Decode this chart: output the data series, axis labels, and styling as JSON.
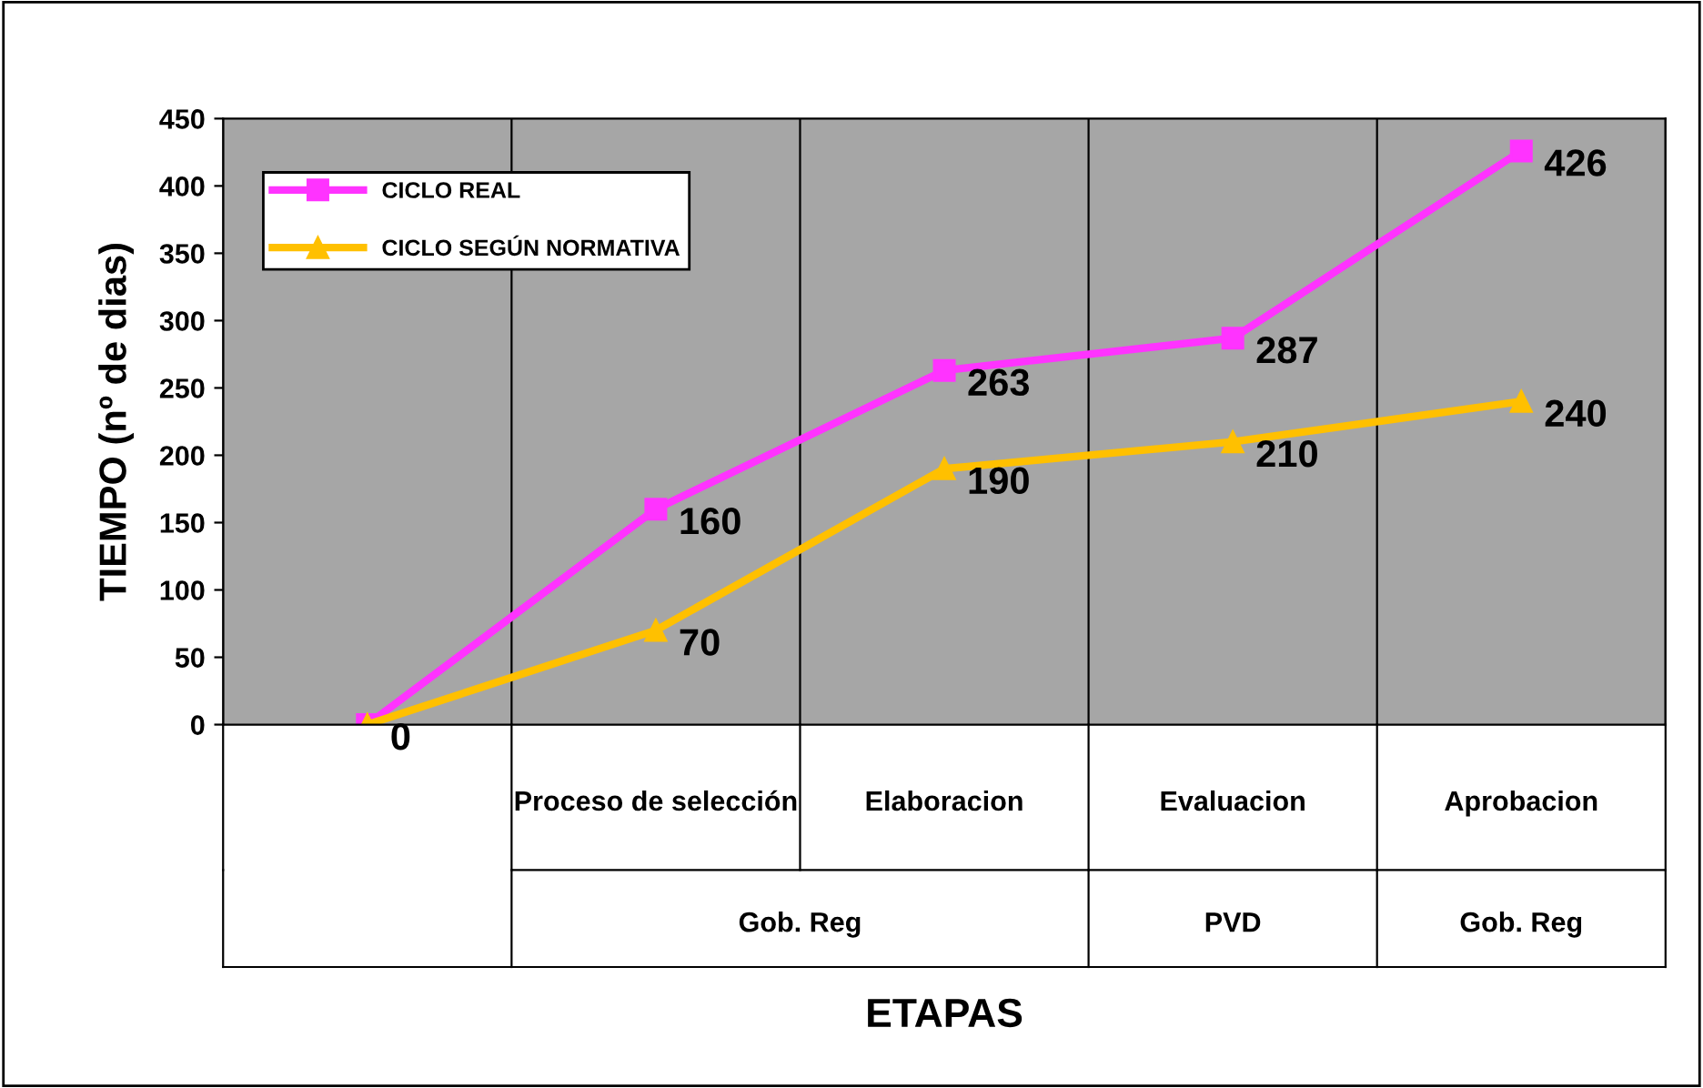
{
  "chart_data": {
    "type": "line",
    "xlabel": "ETAPAS",
    "ylabel": "TIEMPO (nº de dias)",
    "categories": [
      null,
      "Proceso de selección",
      "Elaboracion",
      "Evaluacion",
      "Aprobacion"
    ],
    "series": [
      {
        "name": "CICLO REAL",
        "color": "#ff33ff",
        "marker": "square",
        "values": [
          0,
          160,
          263,
          287,
          426
        ],
        "value_labels": [
          "0",
          "160",
          "263",
          "287",
          "426"
        ]
      },
      {
        "name": "CICLO SEGÚN NORMATIVA",
        "color": "#ffc000",
        "marker": "triangle",
        "values": [
          0,
          70,
          190,
          210,
          240
        ],
        "value_labels": [
          null,
          "70",
          "190",
          "210",
          "240"
        ]
      }
    ],
    "ylim": [
      0,
      450
    ],
    "yticks": [
      0,
      50,
      100,
      150,
      200,
      250,
      300,
      350,
      400,
      450
    ],
    "legend": "top left",
    "grid": false,
    "annotations": [
      "Gob. Reg",
      "PVD",
      "Gob. Reg"
    ]
  }
}
